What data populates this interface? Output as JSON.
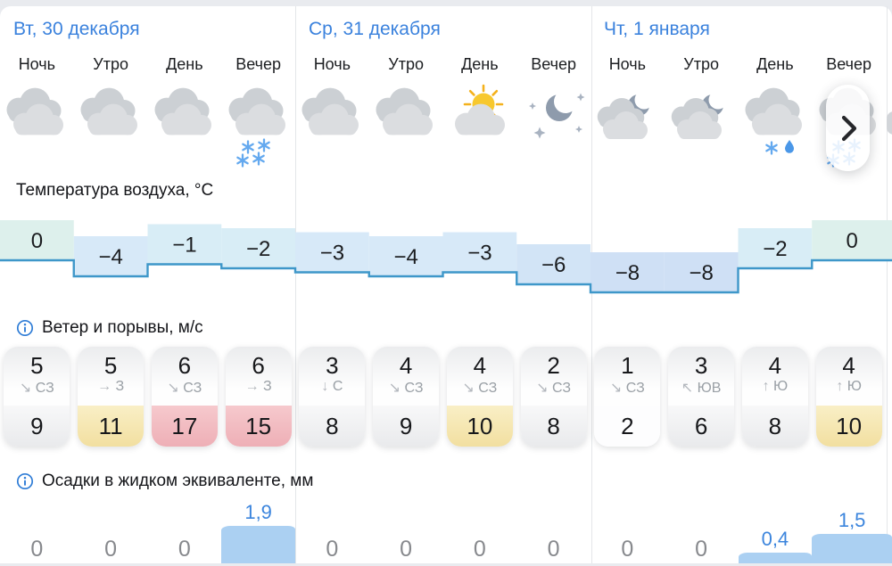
{
  "sections": {
    "temperature_label": "Температура воздуха, °C",
    "wind_label": "Ветер и порывы, м/с",
    "precip_label": "Осадки в жидком эквиваленте, мм"
  },
  "days": [
    {
      "date": "Вт, 30 декабря",
      "periods": [
        "Ночь",
        "Утро",
        "День",
        "Вечер"
      ],
      "icons": [
        "cloudy",
        "cloudy",
        "cloudy",
        "cloudy-snow"
      ],
      "temps": [
        0,
        -4,
        -1,
        -2
      ],
      "wind": [
        {
          "speed": "5",
          "arrow": "↘",
          "dir": "СЗ",
          "gust": "9",
          "gust_level": "gray"
        },
        {
          "speed": "5",
          "arrow": "→",
          "dir": "З",
          "gust": "11",
          "gust_level": "yellow"
        },
        {
          "speed": "6",
          "arrow": "↘",
          "dir": "СЗ",
          "gust": "17",
          "gust_level": "red"
        },
        {
          "speed": "6",
          "arrow": "→",
          "dir": "З",
          "gust": "15",
          "gust_level": "red"
        }
      ],
      "precip": [
        {
          "label": "0",
          "value": 0
        },
        {
          "label": "0",
          "value": 0
        },
        {
          "label": "0",
          "value": 0
        },
        {
          "label": "1,9",
          "value": 1.9
        }
      ]
    },
    {
      "date": "Ср, 31 декабря",
      "periods": [
        "Ночь",
        "Утро",
        "День",
        "Вечер"
      ],
      "icons": [
        "cloudy",
        "cloudy",
        "sun-cloud",
        "moon-stars"
      ],
      "temps": [
        -3,
        -4,
        -3,
        -6
      ],
      "wind": [
        {
          "speed": "3",
          "arrow": "↓",
          "dir": "С",
          "gust": "8",
          "gust_level": "gray"
        },
        {
          "speed": "4",
          "arrow": "↘",
          "dir": "СЗ",
          "gust": "9",
          "gust_level": "gray"
        },
        {
          "speed": "4",
          "arrow": "↘",
          "dir": "СЗ",
          "gust": "10",
          "gust_level": "yellow"
        },
        {
          "speed": "2",
          "arrow": "↘",
          "dir": "СЗ",
          "gust": "8",
          "gust_level": "gray"
        }
      ],
      "precip": [
        {
          "label": "0",
          "value": 0
        },
        {
          "label": "0",
          "value": 0
        },
        {
          "label": "0",
          "value": 0
        },
        {
          "label": "0",
          "value": 0
        }
      ]
    },
    {
      "date": "Чт, 1 января",
      "periods": [
        "Ночь",
        "Утро",
        "День",
        "Вечер"
      ],
      "icons": [
        "cloud-moon",
        "cloud-moon",
        "cloud-snow-rain",
        "cloudy-snow"
      ],
      "temps": [
        -8,
        -8,
        -2,
        0
      ],
      "wind": [
        {
          "speed": "1",
          "arrow": "↘",
          "dir": "СЗ",
          "gust": "2",
          "gust_level": "white"
        },
        {
          "speed": "3",
          "arrow": "↖",
          "dir": "ЮВ",
          "gust": "6",
          "gust_level": "gray"
        },
        {
          "speed": "4",
          "arrow": "↑",
          "dir": "Ю",
          "gust": "8",
          "gust_level": "gray"
        },
        {
          "speed": "4",
          "arrow": "↑",
          "dir": "Ю",
          "gust": "10",
          "gust_level": "yellow"
        }
      ],
      "precip": [
        {
          "label": "0",
          "value": 0
        },
        {
          "label": "0",
          "value": 0
        },
        {
          "label": "0,4",
          "value": 0.4
        },
        {
          "label": "1,5",
          "value": 1.5
        }
      ]
    }
  ],
  "chart_data": [
    {
      "type": "area",
      "title": "Температура воздуха, °C",
      "x": [
        "Вт ночь",
        "Вт утро",
        "Вт день",
        "Вт вечер",
        "Ср ночь",
        "Ср утро",
        "Ср день",
        "Ср вечер",
        "Чт ночь",
        "Чт утро",
        "Чт день",
        "Чт вечер"
      ],
      "values": [
        0,
        -4,
        -1,
        -2,
        -3,
        -4,
        -3,
        -6,
        -8,
        -8,
        -2,
        0
      ],
      "unit": "°C",
      "ylim": [
        -8,
        0
      ]
    },
    {
      "type": "bar",
      "title": "Осадки в жидком эквиваленте, мм",
      "x": [
        "Вт ночь",
        "Вт утро",
        "Вт день",
        "Вт вечер",
        "Ср ночь",
        "Ср утро",
        "Ср день",
        "Ср вечер",
        "Чт ночь",
        "Чт утро",
        "Чт день",
        "Чт вечер"
      ],
      "values": [
        0,
        0,
        0,
        1.9,
        0,
        0,
        0,
        0,
        0,
        0,
        0.4,
        1.5
      ],
      "unit": "мм"
    },
    {
      "type": "table",
      "title": "Ветер и порывы, м/с",
      "rows": {
        "speed": [
          5,
          5,
          6,
          6,
          3,
          4,
          4,
          2,
          1,
          3,
          4,
          4
        ],
        "direction": [
          "СЗ",
          "З",
          "СЗ",
          "З",
          "С",
          "СЗ",
          "СЗ",
          "СЗ",
          "СЗ",
          "ЮВ",
          "Ю",
          "Ю"
        ],
        "gust": [
          9,
          11,
          17,
          15,
          8,
          9,
          10,
          8,
          2,
          6,
          8,
          10
        ]
      }
    }
  ],
  "colors": {
    "accent_blue": "#3b82dd",
    "info_blue": "#2e7cd6",
    "temp_line": "#3e97c9",
    "temp_fill_zero": "#ddf0ec",
    "temp_fill_m1": "#d8edf6",
    "temp_fill_m3": "#d7e9f8",
    "temp_fill_m6": "#d2e4f6",
    "temp_fill_m8": "#cfe0f5",
    "precip_bar": "#abd0f2",
    "precip_label_blue": "#3c85dd",
    "zero_gray": "#87898d",
    "snow_blue": "#64a9ef",
    "rain_blue": "#4a97e8",
    "cloud_back": "#ccd0d4",
    "cloud_front": "#dbdde0",
    "sun_yellow": "#f7c82e",
    "ray_orange": "#f4b11c",
    "moon_gray": "#8e9bac",
    "star_gray": "#a9b3c1"
  }
}
